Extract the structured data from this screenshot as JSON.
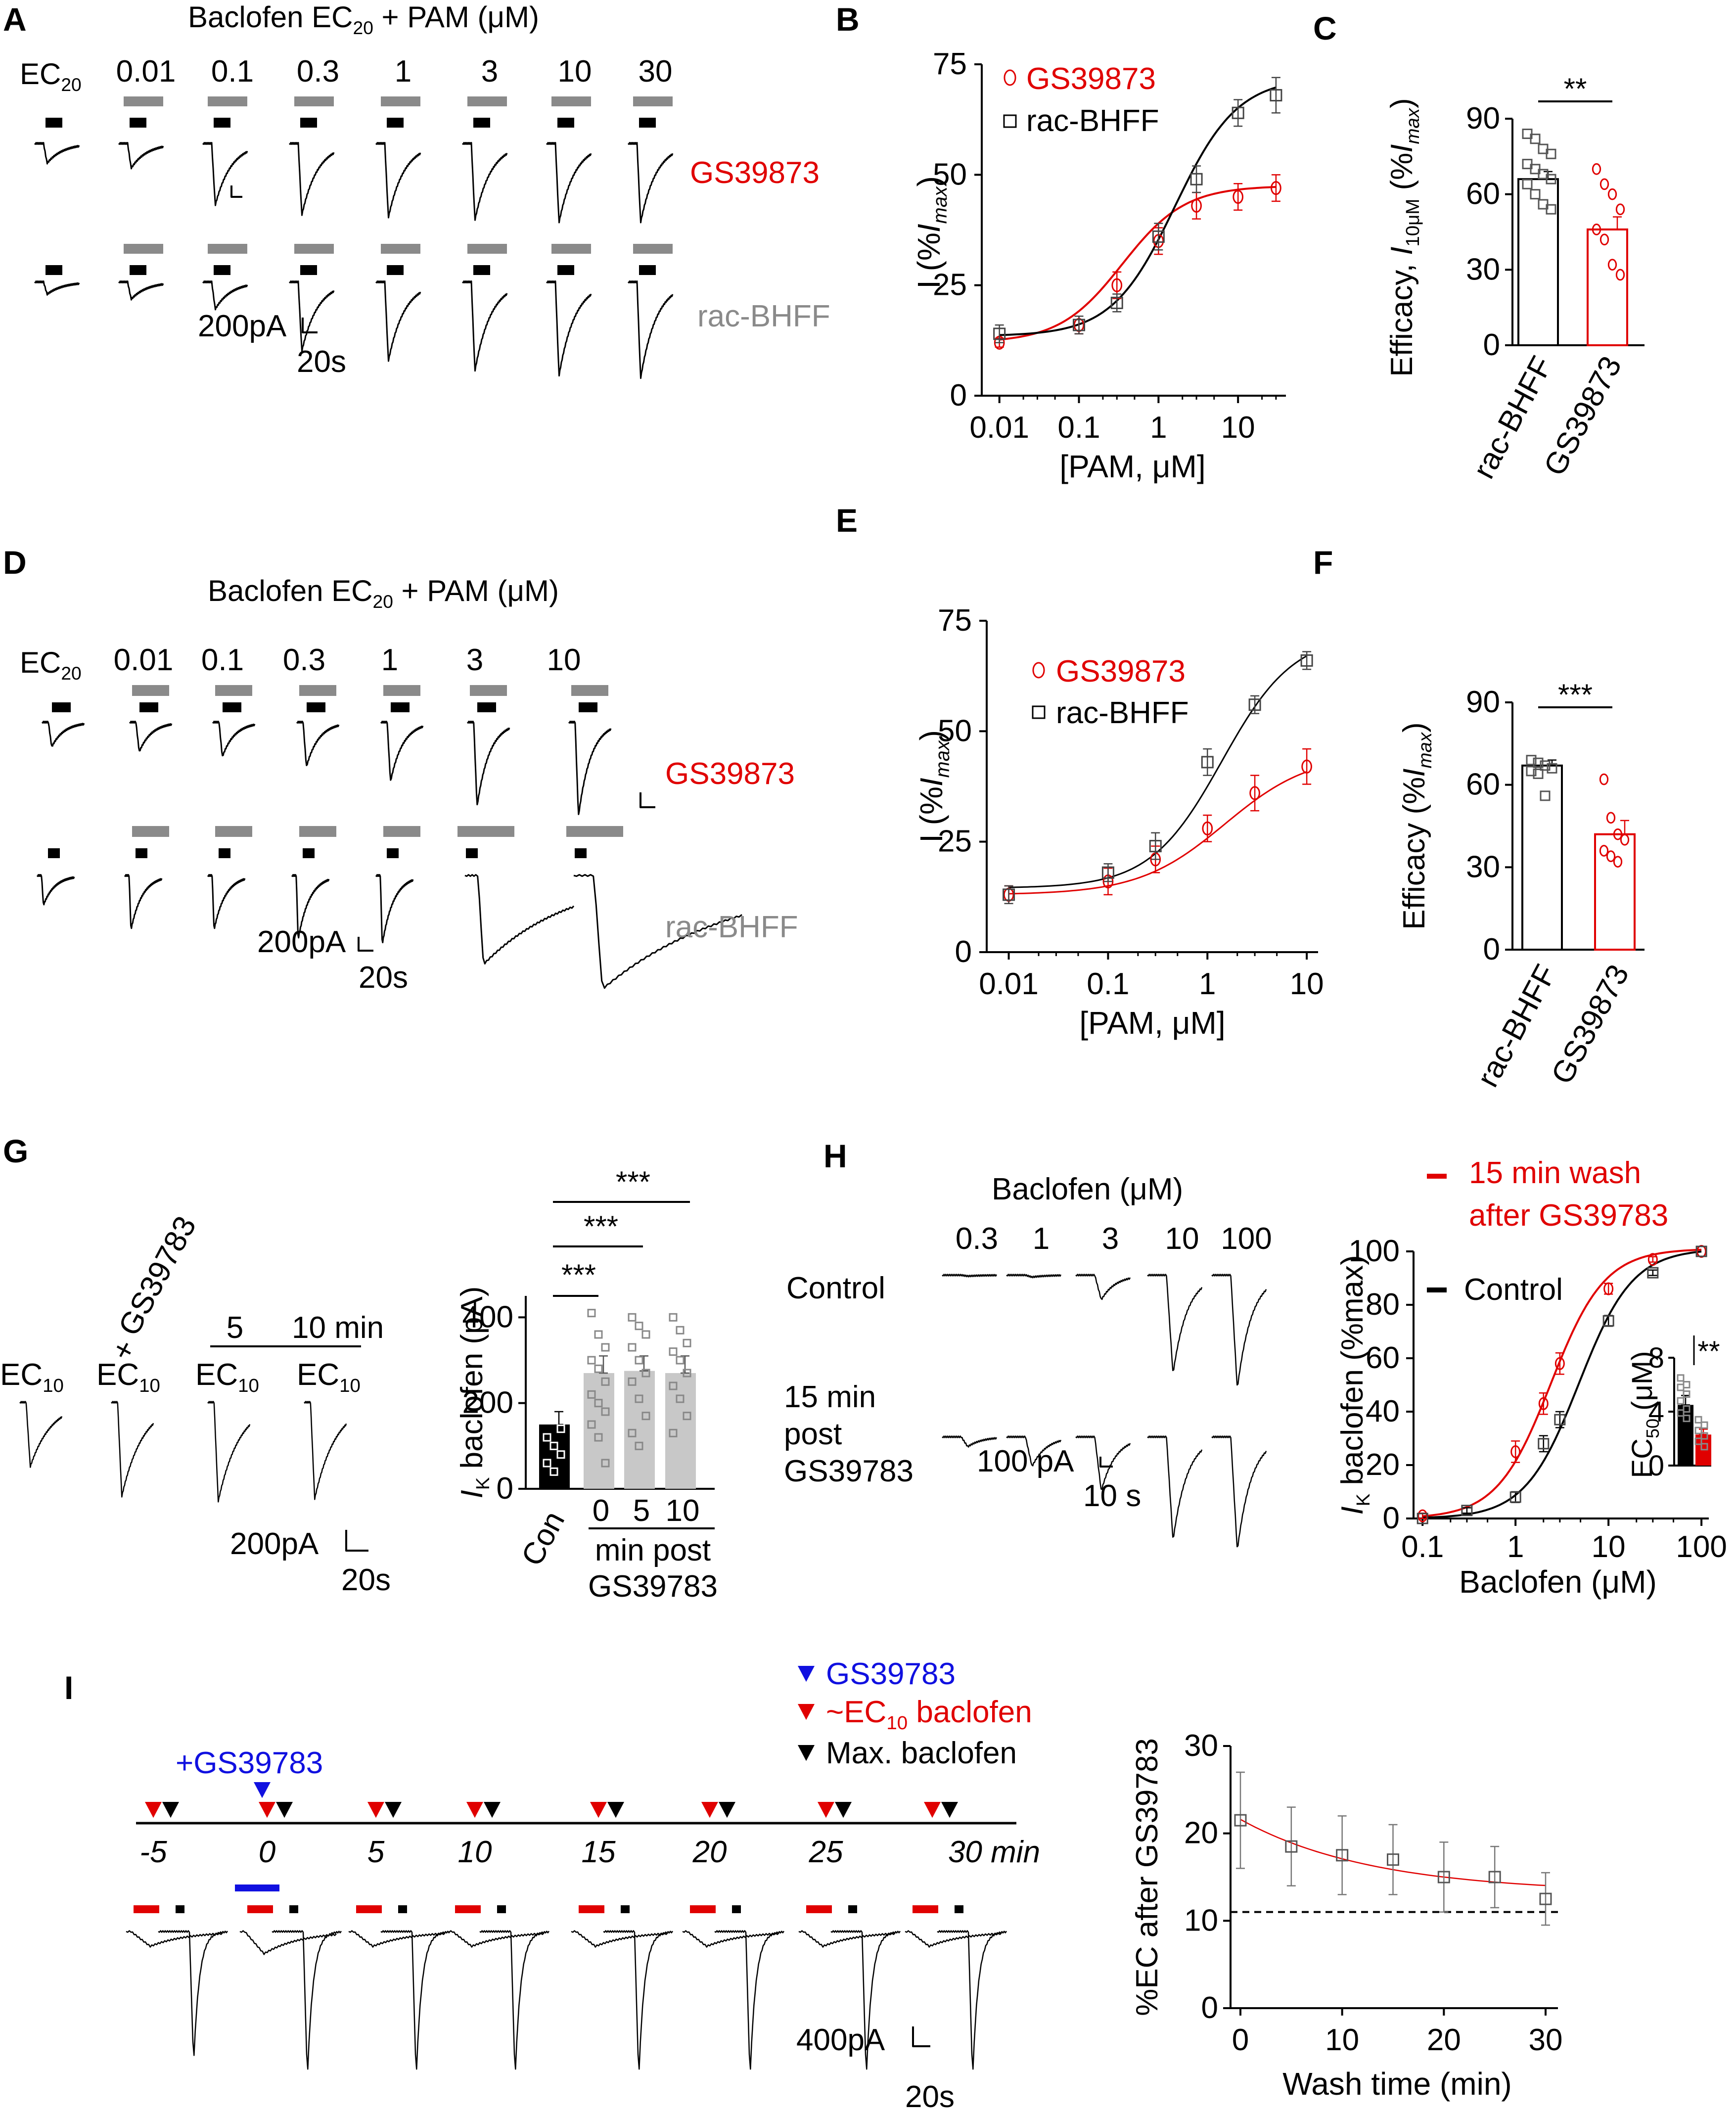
{
  "colors": {
    "red": "#e00000",
    "black": "#000000",
    "gray": "#8a8a8a",
    "lightgray": "#c8c8c8",
    "blue": "#1010e0"
  },
  "panelA": {
    "letter": "A",
    "header": "Baclofen EC",
    "header_sub": "20",
    "header_rest": " + PAM (μM)",
    "ec_label": "EC",
    "ec_sub": "20",
    "concs": [
      "0.01",
      "0.1",
      "0.3",
      "1",
      "3",
      "10",
      "30"
    ],
    "label_top": "GS39873",
    "label_bottom": "rac-BHFF",
    "scale_pa": "200pA",
    "scale_s": "20s"
  },
  "panelB": {
    "letter": "B",
    "ylabel_pre": "I (%",
    "ylabel_it": "I",
    "ylabel_sub": "max",
    "ylabel_post": ")",
    "xlabel": "[PAM, μM]",
    "yticks": [
      "0",
      "25",
      "50",
      "75"
    ],
    "xticks": [
      "0.01",
      "0.1",
      "1",
      "10"
    ],
    "legend": [
      "GS39873",
      "rac-BHFF"
    ]
  },
  "panelC": {
    "letter": "C",
    "ylabel_pre": "Efficacy, ",
    "ylabel_it": "I",
    "ylabel_sub": "10μM",
    "ylabel_mid": " (%",
    "ylabel_it2": "I",
    "ylabel_sub2": "max",
    "ylabel_post": ")",
    "yticks": [
      "0",
      "30",
      "60",
      "90"
    ],
    "cats": [
      "rac-BHFF",
      "GS39873"
    ],
    "sig": "**"
  },
  "panelD": {
    "letter": "D",
    "header": "Baclofen EC",
    "header_sub": "20",
    "header_rest": " + PAM (μM)",
    "ec_label": "EC",
    "ec_sub": "20",
    "concs": [
      "0.01",
      "0.1",
      "0.3",
      "1",
      "3",
      "10"
    ],
    "label_top": "GS39873",
    "label_bottom": "rac-BHFF",
    "scale_pa": "200pA",
    "scale_s": "20s"
  },
  "panelE": {
    "letter": "E",
    "xlabel": "[PAM, μM]",
    "yticks": [
      "0",
      "25",
      "50",
      "75"
    ],
    "xticks": [
      "0.01",
      "0.1",
      "1",
      "10"
    ],
    "legend": [
      "GS39873",
      "rac-BHFF"
    ]
  },
  "panelF": {
    "letter": "F",
    "ylabel": "Efficacy (%",
    "yticks": [
      "0",
      "30",
      "60",
      "90"
    ],
    "cats": [
      "rac-BHFF",
      "GS39873"
    ],
    "sig": "***"
  },
  "panelG": {
    "letter": "G",
    "ec10": "EC",
    "ec10_sub": "10",
    "plus": "+",
    "drug": "GS39783",
    "t5": "5",
    "t10": "10 min",
    "scale_pa": "200pA",
    "scale_s": "20s",
    "ylabel": "baclofen (pA)",
    "ylabel_it": "I",
    "ylabel_sub": "K",
    "yticks": [
      "0",
      "200",
      "400"
    ],
    "cats": [
      "Con",
      "0",
      "5",
      "10"
    ],
    "xnote1": "min post",
    "xnote2": "GS39783",
    "sig": [
      "***",
      "***",
      "***"
    ]
  },
  "panelH": {
    "letter": "H",
    "header": "Baclofen (μM)",
    "concs": [
      "0.3",
      "1",
      "3",
      "10",
      "100"
    ],
    "row1": "Control",
    "row2": [
      "15 min",
      "post",
      "GS39783"
    ],
    "scale_pa": "100 pA",
    "scale_s": "10 s",
    "legend_red": [
      "15 min wash",
      "after GS39783"
    ],
    "legend_black": "Control",
    "ylabel": "baclofen (%max)",
    "yticks": [
      "0",
      "20",
      "40",
      "60",
      "80",
      "100"
    ],
    "xticks": [
      "0.1",
      "1",
      "10",
      "100"
    ],
    "xlabel": "Baclofen (μM)",
    "inset_ylabel": "EC",
    "inset_ysub": "50",
    "inset_yunit": " (μM)",
    "inset_yticks": [
      "0",
      "4",
      "8"
    ],
    "inset_sig": "**"
  },
  "panelI": {
    "letter": "I",
    "legend": [
      "GS39783",
      "~EC",
      "baclofen",
      "Max. baclofen"
    ],
    "legend_sub": "10",
    "add_label": "+GS39783",
    "times": [
      "-5",
      "0",
      "5",
      "10",
      "15",
      "20",
      "25",
      "30 min"
    ],
    "scale_pa": "400pA",
    "scale_s": "20s",
    "ylabel": "%EC after GS39783",
    "xlabel": "Wash time (min)",
    "yticks": [
      "0",
      "10",
      "20",
      "30"
    ],
    "xticks": [
      "0",
      "10",
      "20",
      "30"
    ]
  },
  "chart_data": [
    {
      "panel": "B",
      "type": "scatter",
      "xscale": "log",
      "xlabel": "[PAM, μM]",
      "ylabel": "I (%Imax)",
      "xlim": [
        0.006,
        40
      ],
      "ylim": [
        0,
        75
      ],
      "series": [
        {
          "name": "GS39873",
          "color": "#e00000",
          "x": [
            0.01,
            0.1,
            0.3,
            1,
            3,
            10,
            30
          ],
          "y": [
            12,
            16,
            25,
            35,
            43,
            45,
            47
          ],
          "err": [
            1,
            2,
            3,
            3,
            3,
            3,
            3
          ]
        },
        {
          "name": "rac-BHFF",
          "color": "#000000",
          "x": [
            0.01,
            0.1,
            0.3,
            1,
            3,
            10,
            30
          ],
          "y": [
            14,
            16,
            21,
            36,
            49,
            64,
            68
          ],
          "err": [
            2,
            2,
            2,
            3,
            3,
            3,
            4
          ]
        }
      ]
    },
    {
      "panel": "C",
      "type": "bar",
      "ylabel": "Efficacy, I10μM (%Imax)",
      "ylim": [
        0,
        90
      ],
      "categories": [
        "rac-BHFF",
        "GS39873"
      ],
      "values": [
        66,
        46
      ],
      "err": [
        3,
        5
      ],
      "points": [
        [
          84,
          82,
          78,
          76,
          72,
          70,
          68,
          66,
          64,
          60,
          56,
          54
        ],
        [
          70,
          64,
          60,
          54,
          46,
          42,
          32,
          28
        ]
      ]
    },
    {
      "panel": "E",
      "type": "scatter",
      "xscale": "log",
      "xlabel": "[PAM, μM]",
      "ylabel": "I (%Imax)",
      "xlim": [
        0.006,
        13
      ],
      "ylim": [
        0,
        75
      ],
      "series": [
        {
          "name": "GS39873",
          "color": "#e00000",
          "x": [
            0.01,
            0.1,
            0.3,
            1,
            3,
            10
          ],
          "y": [
            13,
            16,
            21,
            28,
            36,
            42
          ],
          "err": [
            2,
            3,
            3,
            3,
            4,
            4
          ]
        },
        {
          "name": "rac-BHFF",
          "color": "#000000",
          "x": [
            0.01,
            0.1,
            0.3,
            1,
            3,
            10
          ],
          "y": [
            13,
            18,
            24,
            43,
            56,
            66
          ],
          "err": [
            2,
            2,
            3,
            3,
            2,
            2
          ]
        }
      ]
    },
    {
      "panel": "F",
      "type": "bar",
      "ylabel": "Efficacy (%Imax)",
      "ylim": [
        0,
        90
      ],
      "categories": [
        "rac-BHFF",
        "GS39873"
      ],
      "values": [
        67,
        42
      ],
      "err": [
        2,
        5
      ],
      "points": [
        [
          69,
          68,
          67,
          66,
          65,
          64,
          56
        ],
        [
          62,
          48,
          42,
          40,
          36,
          34,
          32
        ]
      ]
    },
    {
      "panel": "G",
      "type": "bar",
      "ylabel": "IK baclofen (pA)",
      "ylim": [
        0,
        450
      ],
      "categories": [
        "Con",
        "0",
        "5",
        "10"
      ],
      "values": [
        150,
        270,
        275,
        270
      ],
      "err": [
        30,
        40,
        35,
        40
      ],
      "points": [
        [
          300,
          240,
          200,
          180,
          160,
          140,
          120,
          100,
          80,
          60,
          40
        ],
        [
          410,
          360,
          330,
          300,
          280,
          250,
          220,
          200,
          180,
          150,
          120,
          60
        ],
        [
          400,
          380,
          360,
          330,
          300,
          270,
          250,
          210,
          170,
          130,
          100
        ],
        [
          400,
          370,
          340,
          320,
          300,
          270,
          240,
          210,
          170,
          130
        ]
      ]
    },
    {
      "panel": "H",
      "type": "scatter",
      "xscale": "log",
      "xlabel": "Baclofen (μM)",
      "ylabel": "IK baclofen (%max)",
      "xlim": [
        0.08,
        120
      ],
      "ylim": [
        0,
        100
      ],
      "series": [
        {
          "name": "15 min wash after GS39783",
          "color": "#e00000",
          "x": [
            0.1,
            1,
            2,
            3,
            10,
            30,
            100
          ],
          "y": [
            1,
            25,
            43,
            58,
            86,
            97,
            100
          ],
          "err": [
            1,
            4,
            4,
            4,
            2,
            1,
            0
          ]
        },
        {
          "name": "Control",
          "color": "#000000",
          "x": [
            0.1,
            0.3,
            1,
            2,
            3,
            10,
            30,
            100
          ],
          "y": [
            0,
            3,
            8,
            28,
            37,
            74,
            92,
            100
          ],
          "err": [
            0,
            1,
            2,
            3,
            3,
            2,
            1,
            0
          ]
        }
      ]
    },
    {
      "panel": "H-inset",
      "type": "bar",
      "ylabel": "EC50 (μM)",
      "ylim": [
        0,
        8
      ],
      "categories": [
        "Control",
        "15 min wash after GS39783"
      ],
      "values": [
        4.5,
        2.3
      ],
      "err": [
        0.7,
        0.4
      ]
    },
    {
      "panel": "I",
      "type": "line",
      "xlabel": "Wash time (min)",
      "ylabel": "%EC after GS39783",
      "xlim": [
        -1,
        32
      ],
      "ylim": [
        0,
        30
      ],
      "reference_line": 11,
      "series": [
        {
          "name": "%EC",
          "x": [
            0,
            5,
            10,
            15,
            20,
            25,
            30
          ],
          "y": [
            21.5,
            18.5,
            17.5,
            17,
            15,
            15,
            12.5
          ],
          "err": [
            5.5,
            4.5,
            4.5,
            4,
            4,
            3.5,
            3
          ]
        }
      ]
    }
  ]
}
